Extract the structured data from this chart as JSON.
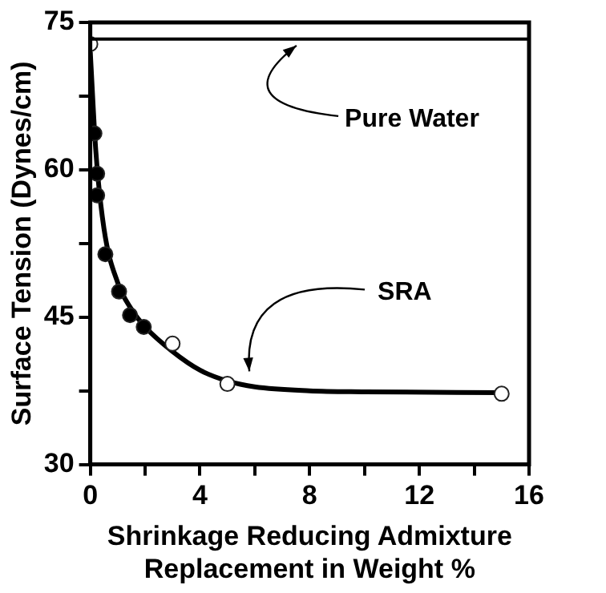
{
  "chart_data": {
    "type": "scatter",
    "xlabel": "Shrinkage Reducing Admixture\nReplacement in Weight %",
    "ylabel": "Surface Tension (Dynes/cm)",
    "xlim": [
      0,
      16
    ],
    "xticks": [
      0,
      {
        "value": 2,
        "label": null
      },
      4,
      {
        "value": 6,
        "label": null
      },
      8,
      {
        "value": 10,
        "label": null
      },
      12,
      {
        "value": 14,
        "label": null
      },
      16
    ],
    "ylim": [
      30,
      75
    ],
    "yticks": [
      30,
      {
        "value": 37.5,
        "label": null
      },
      45,
      {
        "value": 52.5,
        "label": null
      },
      60,
      {
        "value": 67.5,
        "label": null
      },
      75
    ],
    "grid": false,
    "legend": false,
    "marker": "circle",
    "series": [
      {
        "type": "line",
        "color": "#000000",
        "marker": "none",
        "x": [
          0,
          0.2,
          0.5,
          1,
          1.5,
          2,
          3,
          4,
          5,
          6,
          8,
          10,
          15
        ],
        "values": [
          72,
          62,
          54,
          48.5,
          45.8,
          44,
          41.5,
          39.6,
          38.5,
          37.9,
          37.5,
          37.4,
          37.3
        ]
      },
      {
        "type": "scatter",
        "color": "#000000",
        "x": [
          0.15,
          0.25,
          0.25,
          0.55,
          1.05,
          1.45,
          1.95
        ],
        "values": [
          63.7,
          59.6,
          57.4,
          51.4,
          47.6,
          45.2,
          44
        ]
      },
      {
        "type": "scatter",
        "color": "#ffffff",
        "x": [
          0,
          3,
          5,
          15
        ],
        "values": [
          72.8,
          42.3,
          38.2,
          37.2
        ]
      }
    ],
    "ref_lines": [
      {
        "axis": "y",
        "value": 73.3,
        "label": "Pure Water"
      }
    ],
    "annotations": [
      {
        "text": "SRA",
        "x": 5.8,
        "y": 38.5
      }
    ]
  }
}
